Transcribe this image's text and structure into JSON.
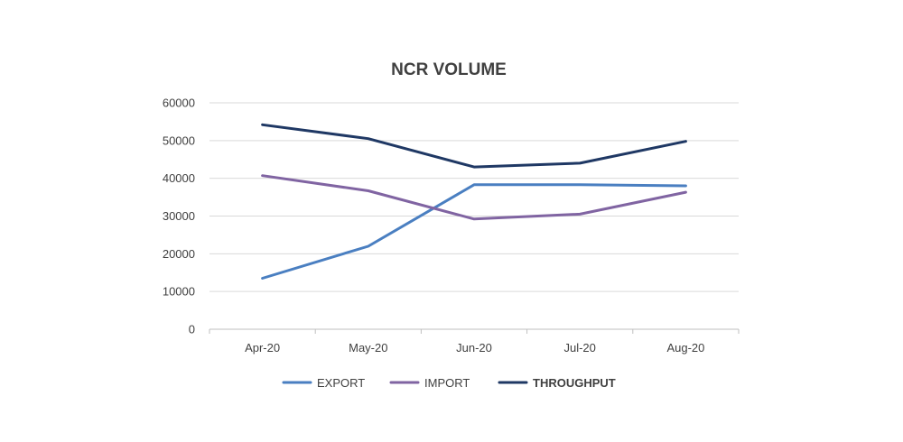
{
  "chart_data": {
    "type": "line",
    "title": "NCR VOLUME",
    "xlabel": "",
    "ylabel": "",
    "categories": [
      "Apr-20",
      "May-20",
      "Jun-20",
      "Jul-20",
      "Aug-20"
    ],
    "ylim": [
      0,
      60000
    ],
    "yticks": [
      "0",
      "10000",
      "20000",
      "30000",
      "40000",
      "50000",
      "60000"
    ],
    "grid": true,
    "legend_position": "bottom",
    "series": [
      {
        "name": "EXPORT",
        "color": "#4a7fc1",
        "values": [
          13500,
          22000,
          38300,
          38300,
          38000
        ]
      },
      {
        "name": "IMPORT",
        "color": "#8064a2",
        "values": [
          40700,
          36700,
          29200,
          30500,
          36300
        ]
      },
      {
        "name": "THROUGHPUT",
        "color": "#1f3864",
        "values": [
          54200,
          50500,
          43000,
          44000,
          49800
        ]
      }
    ]
  }
}
